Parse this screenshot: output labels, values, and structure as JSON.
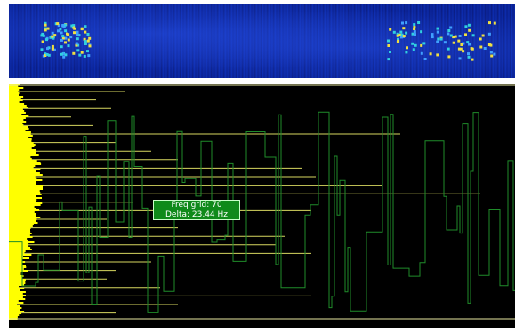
{
  "tooltip": {
    "line1": "Freq grid: 70",
    "line2": "Delta: 23,44 Hz"
  },
  "colors": {
    "waterfall_background": "#0a1f8c",
    "spectrum_background": "#000000",
    "spectrum_trace": "#1f8c2a",
    "average_fill": "#ffff00",
    "marker_lines": "#e6e65a",
    "tooltip_background": "#0f8a1a",
    "tooltip_text": "#ffffff"
  },
  "icons": {
    "waterfall": "waterfall-display",
    "spectrum": "spectrum-display"
  }
}
